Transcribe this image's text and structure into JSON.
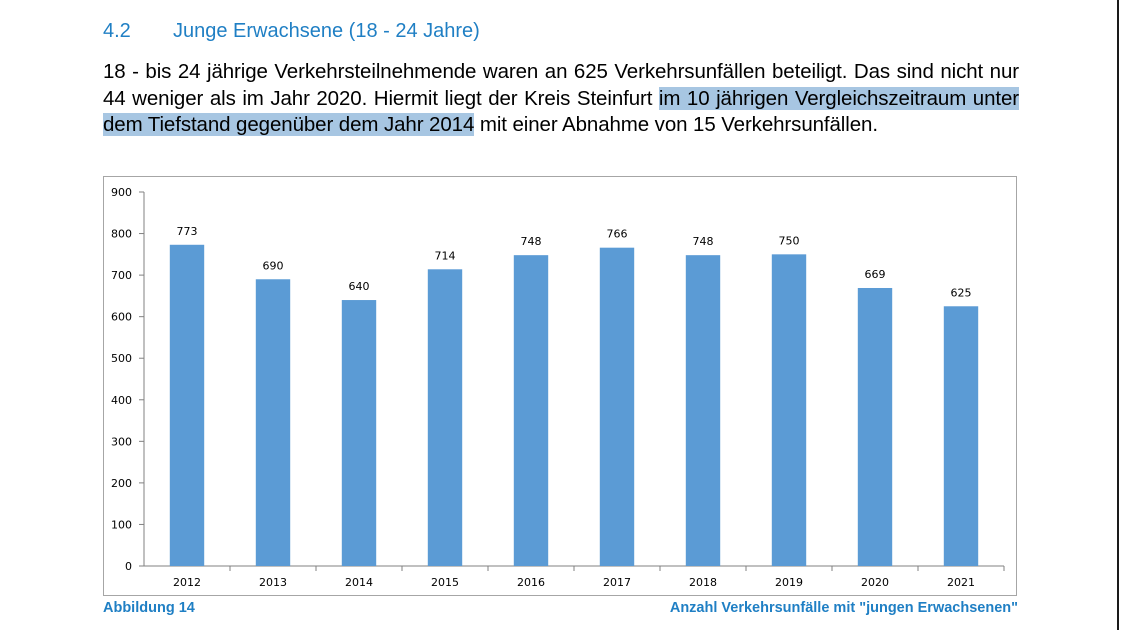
{
  "section": {
    "number": "4.2",
    "title": "Junge Erwachsene (18 - 24 Jahre)"
  },
  "paragraph": {
    "part1": "18 - bis 24 jährige Verkehrsteilnehmende waren an 625 Verkehrsunfällen beteiligt. Das sind nicht nur 44  weniger als im Jahr 2020. Hiermit liegt der Kreis Steinfurt ",
    "highlight": "im 10 jährigen Vergleichszeitraum  unter dem Tiefstand gegenüber dem Jahr 2014",
    "part2": " mit einer Abnahme von 15 Verkehrsunfällen."
  },
  "caption": {
    "left": "Abbildung 14",
    "right": "Anzahl Verkehrsunfälle mit \"jungen Erwachsenen\""
  },
  "chart_data": {
    "type": "bar",
    "categories": [
      "2012",
      "2013",
      "2014",
      "2015",
      "2016",
      "2017",
      "2018",
      "2019",
      "2020",
      "2021"
    ],
    "values": [
      773,
      690,
      640,
      714,
      748,
      766,
      748,
      750,
      669,
      625
    ],
    "yticks": [
      "0",
      "100",
      "200",
      "300",
      "400",
      "500",
      "600",
      "700",
      "800",
      "900"
    ],
    "ylim": [
      0,
      900
    ],
    "grid": false,
    "legend": "none",
    "bar_color": "#5b9bd5"
  }
}
